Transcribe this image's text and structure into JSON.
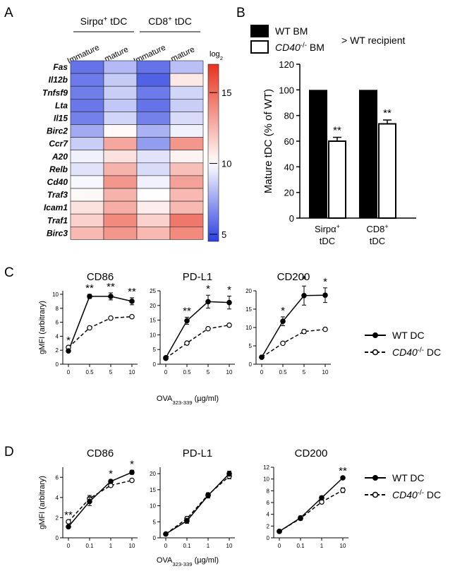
{
  "panels": {
    "A": "A",
    "B": "B",
    "C": "C",
    "D": "D"
  },
  "chart_data": [
    {
      "panel": "A",
      "type": "heatmap",
      "groups": [
        "Sirpα⁺ tDC",
        "CD8⁺ tDC"
      ],
      "columns": [
        "Immature",
        "mature",
        "Immature",
        "mature"
      ],
      "rows": [
        "Fas",
        "Il12b",
        "Tnfsf9",
        "Lta",
        "Il15",
        "Birc2",
        "Ccr7",
        "A20",
        "Relb",
        "Cd40",
        "Traf3",
        "Icam1",
        "Traf1",
        "Birc3"
      ],
      "values": [
        [
          6.0,
          8.0,
          6.0,
          8.2
        ],
        [
          6.2,
          8.5,
          5.5,
          10.8
        ],
        [
          6.3,
          8.6,
          6.2,
          8.8
        ],
        [
          6.1,
          8.4,
          6.0,
          8.6
        ],
        [
          6.4,
          8.8,
          6.4,
          9.0
        ],
        [
          7.6,
          10.2,
          7.8,
          9.6
        ],
        [
          8.6,
          13.0,
          7.2,
          13.6
        ],
        [
          9.6,
          11.0,
          9.2,
          10.4
        ],
        [
          9.2,
          12.6,
          9.0,
          12.2
        ],
        [
          9.8,
          13.6,
          9.6,
          13.2
        ],
        [
          10.2,
          12.6,
          10.0,
          12.4
        ],
        [
          11.0,
          12.8,
          10.6,
          12.4
        ],
        [
          11.6,
          14.0,
          11.6,
          14.6
        ],
        [
          12.4,
          13.6,
          12.4,
          14.0
        ]
      ],
      "colorbar": {
        "label": "log₂",
        "min": 4.5,
        "max": 17,
        "ticks": [
          5,
          10,
          15
        ]
      },
      "colors": {
        "low": "#2b3fe0",
        "mid": "#ffffff",
        "high": "#e8321e"
      }
    },
    {
      "panel": "B",
      "type": "bar",
      "legend": [
        {
          "label": "WT BM",
          "fill": "#000000"
        },
        {
          "label_italic": "CD40",
          "label_sup": "-/-",
          "label_rest": " BM",
          "fill": "#ffffff"
        }
      ],
      "legend_note": "> WT recipient",
      "categories": [
        {
          "line1": "Sirpα",
          "sup": "+",
          "line2": "tDC"
        },
        {
          "line1": "CD8",
          "sup": "+",
          "line2": "tDC"
        }
      ],
      "series": [
        {
          "name": "WT BM",
          "values": [
            100,
            100
          ],
          "errors": [
            0,
            0
          ],
          "sig": [
            "",
            ""
          ]
        },
        {
          "name": "CD40-/- BM",
          "values": [
            60,
            73.5
          ],
          "errors": [
            3,
            3
          ],
          "sig": [
            "**",
            "**"
          ]
        }
      ],
      "ylabel": "Mature tDC (% of WT)",
      "ylim": [
        0,
        120
      ],
      "yticks": [
        0,
        20,
        40,
        60,
        80,
        100,
        120
      ]
    },
    {
      "panel": "C",
      "type": "line",
      "x_categories": [
        "0",
        "0.5",
        "5",
        "10"
      ],
      "xlabel_main": "OVA",
      "xlabel_sub": "323-339",
      "xlabel_rest": " (µg/ml)",
      "ylabel": "gMFI (arbitrary)",
      "legend": {
        "wt": "WT DC",
        "ko_italic": "CD40",
        "ko_sup": "-/-",
        "ko_rest": " DC"
      },
      "subplots": [
        {
          "title": "CD86",
          "ylim": [
            0,
            10.5
          ],
          "yticks": [
            0,
            2,
            4,
            6,
            8,
            10
          ],
          "wt": [
            1.9,
            9.7,
            9.7,
            9.0
          ],
          "wt_err": [
            0.1,
            0.3,
            0.5,
            0.5
          ],
          "ko": [
            2.4,
            5.2,
            6.6,
            6.8
          ],
          "ko_err": [
            0.1,
            0.2,
            0.1,
            0.1
          ],
          "sig": [
            "*",
            "**",
            "**",
            "**"
          ]
        },
        {
          "title": "PD-L1",
          "ylim": [
            0,
            25
          ],
          "yticks": [
            0,
            5,
            10,
            15,
            20,
            25
          ],
          "wt": [
            2.2,
            14.8,
            21.3,
            21.0
          ],
          "wt_err": [
            0.2,
            1.2,
            2.2,
            2.2
          ],
          "ko": [
            2.0,
            7.2,
            12.1,
            13.3
          ],
          "ko_err": [
            0.2,
            0.5,
            0.5,
            0.3
          ],
          "sig": [
            "",
            "**",
            "*",
            "*"
          ]
        },
        {
          "title": "CD200",
          "ylim": [
            0,
            20
          ],
          "yticks": [
            0,
            5,
            10,
            15,
            20
          ],
          "wt": [
            1.9,
            11.7,
            18.7,
            18.8
          ],
          "wt_err": [
            0.2,
            1.2,
            2.6,
            2.0
          ],
          "ko": [
            1.9,
            5.7,
            8.9,
            9.5
          ],
          "ko_err": [
            0.2,
            0.4,
            0.5,
            0.3
          ],
          "sig": [
            "",
            "*",
            "*",
            "*"
          ]
        }
      ]
    },
    {
      "panel": "D",
      "type": "line",
      "x_categories": [
        "0",
        "0.1",
        "1",
        "10"
      ],
      "xlabel_main": "OVA",
      "xlabel_sub": "323-339",
      "xlabel_rest": " (µg/ml)",
      "ylabel": "gMFI (arbitrary)",
      "legend": {
        "wt": "WT DC",
        "ko_italic": "CD40",
        "ko_sup": "-/-",
        "ko_rest": " DC"
      },
      "subplots": [
        {
          "title": "CD86",
          "ylim": [
            0,
            7
          ],
          "yticks": [
            0,
            2,
            4,
            6
          ],
          "wt": [
            1.1,
            3.6,
            5.6,
            6.5
          ],
          "wt_err": [
            0.05,
            0.4,
            0.15,
            0.2
          ],
          "ko": [
            1.6,
            3.9,
            5.2,
            5.7
          ],
          "ko_err": [
            0.05,
            0.3,
            0.15,
            0.15
          ],
          "sig": [
            "**",
            "",
            "*",
            "*"
          ]
        },
        {
          "title": "PD-L1",
          "ylim": [
            0,
            22
          ],
          "yticks": [
            0,
            5,
            10,
            15,
            20
          ],
          "wt": [
            1.2,
            5.3,
            13.2,
            20.0
          ],
          "wt_err": [
            0.1,
            0.8,
            0.8,
            0.8
          ],
          "ko": [
            1.2,
            6.0,
            13.4,
            19.2
          ],
          "ko_err": [
            0.1,
            0.6,
            0.6,
            0.8
          ],
          "sig": [
            "",
            "",
            "",
            ""
          ]
        },
        {
          "title": "CD200",
          "ylim": [
            0,
            12
          ],
          "yticks": [
            0,
            2,
            4,
            6,
            8,
            10,
            12
          ],
          "wt": [
            1.1,
            3.4,
            6.8,
            10.2
          ],
          "wt_err": [
            0.05,
            0.3,
            0.3,
            0.15
          ],
          "ko": [
            1.1,
            3.3,
            6.1,
            8.1
          ],
          "ko_err": [
            0.05,
            0.3,
            0.3,
            0.4
          ],
          "sig": [
            "",
            "",
            "",
            "**"
          ]
        }
      ]
    }
  ]
}
